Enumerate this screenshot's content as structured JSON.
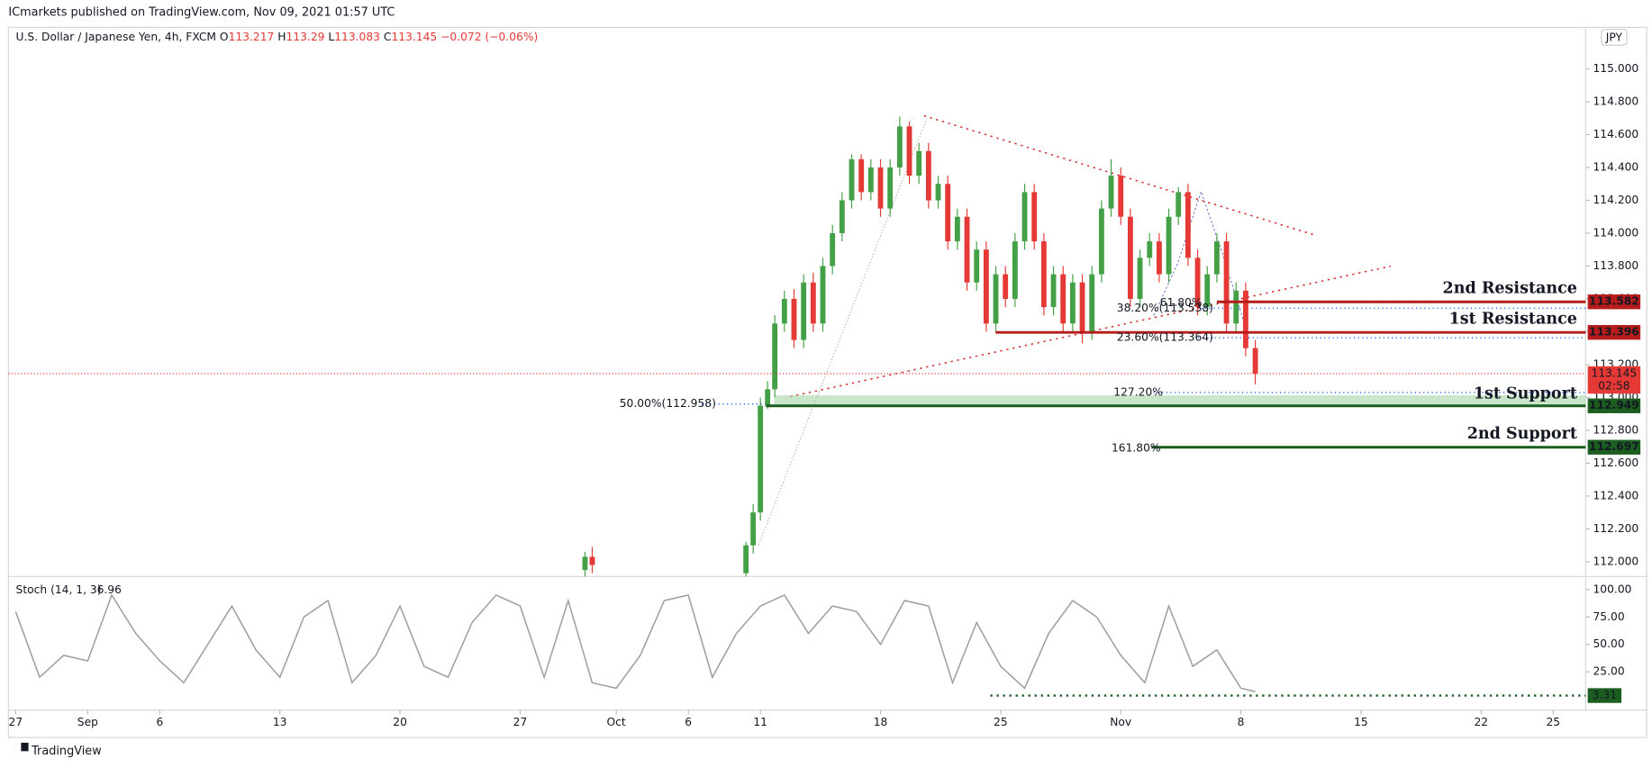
{
  "header": {
    "publisher": "ICmarkets published on TradingView.com, Nov 09, 2021 01:57 UTC",
    "symbol": "U.S. Dollar / Japanese Yen, 4h, FXCM",
    "o_label": "O",
    "open": 113.217,
    "h_label": "H",
    "high": 113.29,
    "l_label": "L",
    "low": 113.083,
    "c_label": "C",
    "close": 113.145,
    "change": "−0.072 (−0.06%)",
    "currency": "JPY",
    "countdown": "02:58",
    "logo": "TradingView"
  },
  "chart_data": [
    {
      "type": "candlestick",
      "up_color": "#43a047",
      "down_color": "#e53935",
      "xlim": [
        -0.3,
        65.35
      ],
      "ylim": [
        111.91,
        115.24
      ],
      "xticks": [
        {
          "value": 0,
          "label": "27"
        },
        {
          "value": 3,
          "label": "Sep"
        },
        {
          "value": 6,
          "label": "6"
        },
        {
          "value": 11,
          "label": "13"
        },
        {
          "value": 16,
          "label": "20"
        },
        {
          "value": 21,
          "label": "27"
        },
        {
          "value": 25,
          "label": "Oct"
        },
        {
          "value": 28,
          "label": "6"
        },
        {
          "value": 31,
          "label": "11"
        },
        {
          "value": 36,
          "label": "18"
        },
        {
          "value": 41,
          "label": "25"
        },
        {
          "value": 46,
          "label": "Nov"
        },
        {
          "value": 51,
          "label": "8"
        },
        {
          "value": 56,
          "label": "15"
        },
        {
          "value": 61,
          "label": "22"
        },
        {
          "value": 64,
          "label": "25"
        }
      ],
      "yticks": [
        {
          "value": 112.0,
          "label": "112.000"
        },
        {
          "value": 112.2,
          "label": "112.200"
        },
        {
          "value": 112.4,
          "label": "112.400"
        },
        {
          "value": 112.6,
          "label": "112.600"
        },
        {
          "value": 112.8,
          "label": "112.800"
        },
        {
          "value": 113.0,
          "label": "113.000"
        },
        {
          "value": 113.2,
          "label": "113.200"
        },
        {
          "value": 113.4,
          "label": "113.400"
        },
        {
          "value": 113.6,
          "label": "113.600"
        },
        {
          "value": 113.8,
          "label": "113.800"
        },
        {
          "value": 114.0,
          "label": "114.000"
        },
        {
          "value": 114.2,
          "label": "114.200"
        },
        {
          "value": 114.4,
          "label": "114.400"
        },
        {
          "value": 114.6,
          "label": "114.600"
        },
        {
          "value": 114.8,
          "label": "114.800"
        },
        {
          "value": 115.0,
          "label": "115.000"
        }
      ],
      "x": [
        23.7,
        24.0,
        30.4,
        30.7,
        31.0,
        31.3,
        31.6,
        32.0,
        32.4,
        32.8,
        33.2,
        33.6,
        34.0,
        34.4,
        34.8,
        35.2,
        35.6,
        36.0,
        36.4,
        36.8,
        37.2,
        37.6,
        38.0,
        38.4,
        38.8,
        39.2,
        39.6,
        40.0,
        40.4,
        40.8,
        41.2,
        41.6,
        42.0,
        42.4,
        42.8,
        43.2,
        43.6,
        44.0,
        44.4,
        44.8,
        45.2,
        45.6,
        46.0,
        46.4,
        46.8,
        47.2,
        47.6,
        48.0,
        48.4,
        48.8,
        49.2,
        49.6,
        50.0,
        50.4,
        50.8,
        51.2,
        51.6
      ],
      "open": [
        111.95,
        112.03,
        111.93,
        112.1,
        112.3,
        112.95,
        113.05,
        113.45,
        113.6,
        113.35,
        113.7,
        113.45,
        113.8,
        114.0,
        114.2,
        114.45,
        114.25,
        114.4,
        114.15,
        114.4,
        114.65,
        114.35,
        114.5,
        114.2,
        114.3,
        113.95,
        114.1,
        113.7,
        113.9,
        113.45,
        113.75,
        113.6,
        113.95,
        114.25,
        113.95,
        113.55,
        113.75,
        113.45,
        113.7,
        113.4,
        113.75,
        114.15,
        114.35,
        114.1,
        113.6,
        113.85,
        113.95,
        113.75,
        114.1,
        114.25,
        113.85,
        113.55,
        113.75,
        113.95,
        113.45,
        113.65,
        113.3
      ],
      "high": [
        112.06,
        112.09,
        112.12,
        112.35,
        113.0,
        113.1,
        113.5,
        113.65,
        113.66,
        113.75,
        113.76,
        113.85,
        114.05,
        114.25,
        114.48,
        114.48,
        114.45,
        114.45,
        114.45,
        114.71,
        114.68,
        114.55,
        114.55,
        114.35,
        114.35,
        114.15,
        114.15,
        113.95,
        113.95,
        113.8,
        113.8,
        114.0,
        114.3,
        114.3,
        114.0,
        113.8,
        113.8,
        113.75,
        113.75,
        113.8,
        114.2,
        114.45,
        114.4,
        114.15,
        113.9,
        114.0,
        114.0,
        114.15,
        114.28,
        114.3,
        113.9,
        113.8,
        114.0,
        114.0,
        113.7,
        113.7,
        113.35
      ],
      "low": [
        111.9,
        111.93,
        111.9,
        112.05,
        112.25,
        112.93,
        113.0,
        113.4,
        113.3,
        113.3,
        113.4,
        113.4,
        113.75,
        113.95,
        114.15,
        114.2,
        114.2,
        114.1,
        114.1,
        114.35,
        114.3,
        114.3,
        114.15,
        114.15,
        113.9,
        113.9,
        113.65,
        113.65,
        113.4,
        113.4,
        113.55,
        113.55,
        113.9,
        113.9,
        113.5,
        113.5,
        113.4,
        113.4,
        113.33,
        113.35,
        113.7,
        114.1,
        114.05,
        113.55,
        113.55,
        113.8,
        113.7,
        113.7,
        114.05,
        113.8,
        113.5,
        113.5,
        113.7,
        113.4,
        113.4,
        113.25,
        113.08
      ],
      "close": [
        112.03,
        111.98,
        112.1,
        112.3,
        112.95,
        113.05,
        113.45,
        113.6,
        113.35,
        113.7,
        113.45,
        113.8,
        114.0,
        114.2,
        114.45,
        114.25,
        114.4,
        114.15,
        114.4,
        114.65,
        114.35,
        114.5,
        114.2,
        114.3,
        113.95,
        114.1,
        113.7,
        113.9,
        113.45,
        113.75,
        113.6,
        113.95,
        114.25,
        113.95,
        113.55,
        113.75,
        113.45,
        113.7,
        113.4,
        113.75,
        114.15,
        114.35,
        114.1,
        113.6,
        113.85,
        113.95,
        113.75,
        114.1,
        114.25,
        113.85,
        113.55,
        113.75,
        113.95,
        113.45,
        113.65,
        113.3,
        113.145
      ],
      "levels": [
        {
          "label": "2nd Resistance",
          "value": 113.582,
          "color": "#b71c1c"
        },
        {
          "label": "1st Resistance",
          "value": 113.396,
          "color": "#b71c1c"
        },
        {
          "label": "1st Support",
          "value": 112.949,
          "color": "#1b5e20"
        },
        {
          "label": "2nd Support",
          "value": 112.697,
          "color": "#1b5e20"
        }
      ],
      "annotations": [
        {
          "text": "61.80%",
          "color": "#c9a227"
        },
        {
          "text": "38.20%(113.538)",
          "color": "#2962ff"
        },
        {
          "text": "23.60%(113.364)",
          "color": "#2962ff"
        },
        {
          "text": "50.00%(112.958)",
          "color": "#2962ff"
        },
        {
          "text": "127.20%",
          "color": "#2962ff"
        },
        {
          "text": "161.80%",
          "color": "#c9a227"
        }
      ]
    },
    {
      "type": "line",
      "title": "Stoch (14, 1, 3)",
      "last_value": 6.96,
      "ylim": [
        -10,
        110
      ],
      "yticks": [
        {
          "value": 25,
          "label": "25.00"
        },
        {
          "value": 50,
          "label": "50.00"
        },
        {
          "value": 75,
          "label": "75.00"
        },
        {
          "value": 100,
          "label": "100.00"
        }
      ],
      "x": [
        0,
        1,
        2,
        3,
        4,
        5,
        6,
        7,
        8,
        9,
        10,
        11,
        12,
        13,
        14,
        15,
        16,
        17,
        18,
        19,
        20,
        21,
        22,
        23,
        24,
        25,
        26,
        27,
        28,
        29,
        30,
        31,
        32,
        33,
        34,
        35,
        36,
        37,
        38,
        39,
        40,
        41,
        42,
        43,
        44,
        45,
        46,
        47,
        48,
        49,
        50,
        51,
        51.6
      ],
      "series": [
        {
          "name": "Stoch",
          "color": "#9e9e9e",
          "values": [
            80,
            20,
            40,
            35,
            95,
            60,
            35,
            15,
            50,
            85,
            45,
            20,
            75,
            90,
            15,
            40,
            85,
            30,
            20,
            70,
            95,
            85,
            20,
            90,
            15,
            10,
            40,
            90,
            95,
            20,
            60,
            85,
            95,
            60,
            85,
            80,
            50,
            90,
            85,
            15,
            70,
            30,
            10,
            60,
            90,
            75,
            40,
            15,
            85,
            30,
            45,
            10,
            6.96
          ]
        }
      ],
      "level": 3.31,
      "level_color": "#1b5e20"
    }
  ]
}
